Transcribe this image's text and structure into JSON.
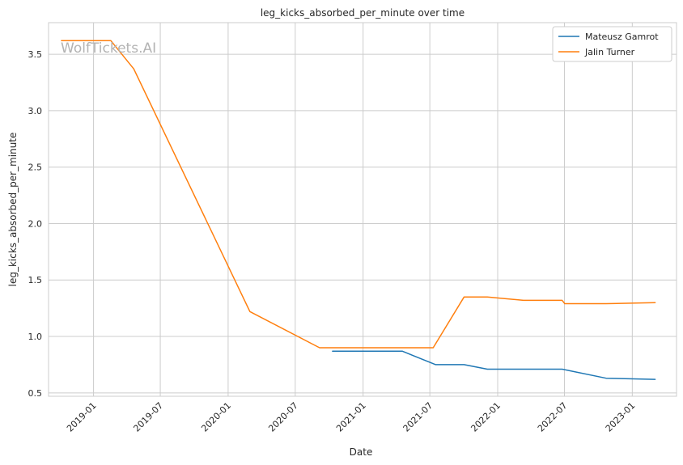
{
  "watermark": "WolfTickets.AI",
  "chart_data": {
    "type": "line",
    "title": "leg_kicks_absorbed_per_minute over time",
    "xlabel": "Date",
    "ylabel": "leg_kicks_absorbed_per_minute",
    "xlim": [
      "2018-09-01",
      "2023-05-01"
    ],
    "ylim": [
      0.47,
      3.78
    ],
    "x_ticks": [
      "2019-01",
      "2019-07",
      "2020-01",
      "2020-07",
      "2021-01",
      "2021-07",
      "2022-01",
      "2022-07",
      "2023-01"
    ],
    "y_ticks": [
      0.5,
      1.0,
      1.5,
      2.0,
      2.5,
      3.0,
      3.5
    ],
    "grid": true,
    "legend_position": "top-right",
    "series": [
      {
        "name": "Mateusz Gamrot",
        "color": "#1f77b4",
        "points": [
          {
            "x": "2020-10-10",
            "y": 0.87
          },
          {
            "x": "2021-04-17",
            "y": 0.87
          },
          {
            "x": "2021-07-17",
            "y": 0.75
          },
          {
            "x": "2021-10-02",
            "y": 0.75
          },
          {
            "x": "2021-12-04",
            "y": 0.71
          },
          {
            "x": "2022-06-25",
            "y": 0.71
          },
          {
            "x": "2022-10-22",
            "y": 0.63
          },
          {
            "x": "2023-03-04",
            "y": 0.62
          }
        ]
      },
      {
        "name": "Jalin Turner",
        "color": "#ff7f0e",
        "points": [
          {
            "x": "2018-10-06",
            "y": 3.62
          },
          {
            "x": "2019-02-17",
            "y": 3.62
          },
          {
            "x": "2019-04-20",
            "y": 3.37
          },
          {
            "x": "2020-02-29",
            "y": 1.22
          },
          {
            "x": "2020-09-05",
            "y": 0.9
          },
          {
            "x": "2021-07-10",
            "y": 0.9
          },
          {
            "x": "2021-10-02",
            "y": 1.35
          },
          {
            "x": "2021-12-04",
            "y": 1.35
          },
          {
            "x": "2022-03-12",
            "y": 1.32
          },
          {
            "x": "2022-06-25",
            "y": 1.32
          },
          {
            "x": "2022-07-02",
            "y": 1.29
          },
          {
            "x": "2022-10-22",
            "y": 1.29
          },
          {
            "x": "2023-03-04",
            "y": 1.3
          }
        ]
      }
    ]
  }
}
